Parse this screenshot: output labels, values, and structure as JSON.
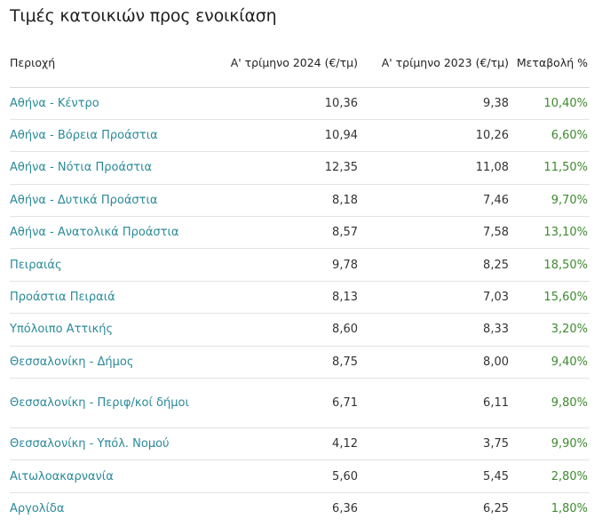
{
  "title": "Τιμές κατοικιών προς ενοικίαση",
  "headers": {
    "region": "Περιοχή",
    "q1_2024": "Α' τρίμηνο 2024 (€/τμ)",
    "q1_2023": "Α' τρίμηνο 2023 (€/τμ)",
    "change": "Μεταβολή %"
  },
  "colors": {
    "region_link": "#2a8a99",
    "change_positive": "#3e8a2f",
    "divider": "#e3e3e3"
  },
  "rows": [
    {
      "region": "Αθήνα - Κέντρο",
      "q1_2024": "10,36",
      "q1_2023": "9,38",
      "change": "10,40%"
    },
    {
      "region": "Αθήνα - Βόρεια Προάστια",
      "q1_2024": "10,94",
      "q1_2023": "10,26",
      "change": "6,60%"
    },
    {
      "region": "Αθήνα - Νότια Προάστια",
      "q1_2024": "12,35",
      "q1_2023": "11,08",
      "change": "11,50%"
    },
    {
      "region": "Αθήνα - Δυτικά Προάστια",
      "q1_2024": "8,18",
      "q1_2023": "7,46",
      "change": "9,70%"
    },
    {
      "region": "Αθήνα - Ανατολικά Προάστια",
      "q1_2024": "8,57",
      "q1_2023": "7,58",
      "change": "13,10%"
    },
    {
      "region": "Πειραιάς",
      "q1_2024": "9,78",
      "q1_2023": "8,25",
      "change": "18,50%"
    },
    {
      "region": "Προάστια Πειραιά",
      "q1_2024": "8,13",
      "q1_2023": "7,03",
      "change": "15,60%"
    },
    {
      "region": "Υπόλοιπο Αττικής",
      "q1_2024": "8,60",
      "q1_2023": "8,33",
      "change": "3,20%"
    },
    {
      "region": "Θεσσαλονίκη - Δήμος",
      "q1_2024": "8,75",
      "q1_2023": "8,00",
      "change": "9,40%"
    },
    {
      "region": "Θεσσαλονίκη - Περιφ/κοί δήμοι",
      "q1_2024": "6,71",
      "q1_2023": "6,11",
      "change": "9,80%"
    },
    {
      "region": "Θεσσαλονίκη - Υπόλ. Νομού",
      "q1_2024": "4,12",
      "q1_2023": "3,75",
      "change": "9,90%"
    },
    {
      "region": "Αιτωλοακαρνανία",
      "q1_2024": "5,60",
      "q1_2023": "5,45",
      "change": "2,80%"
    },
    {
      "region": "Αργολίδα",
      "q1_2024": "6,36",
      "q1_2023": "6,25",
      "change": "1,80%"
    }
  ]
}
